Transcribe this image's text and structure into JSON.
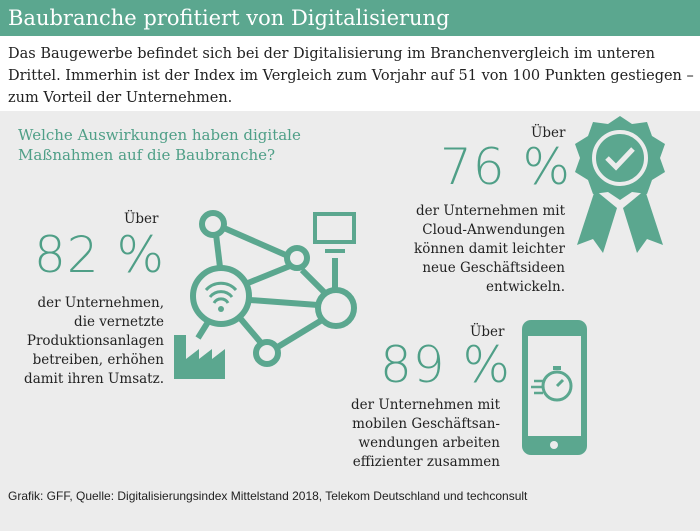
{
  "title": "Baubranche profitiert von Digitalisierung",
  "intro": "Das Baugewerbe befindet sich bei der Digitalisierung im Branchenvergleich im unteren Drittel. Immerhin ist der Index im Vergleich zum Vorjahr auf 51 von 100 Punkten gestiegen – zum Vorteil der Unternehmen.",
  "question": [
    "Welche Auswirkungen haben digitale",
    "Maßnahmen auf die Baubranche?"
  ],
  "accent": "#5ba78f",
  "stats": [
    {
      "prefix": "Über",
      "value": "82 %",
      "text": [
        "der Unternehmen,",
        "die vernetzte",
        "Produktionsanlagen",
        "betreiben, erhöhen",
        "damit ihren Umsatz."
      ],
      "icon": "network-factory-icon"
    },
    {
      "prefix": "Über",
      "value": "76 %",
      "text": [
        "der Unternehmen mit",
        "Cloud-Anwendungen",
        "können damit leichter",
        "neue Geschäftsideen",
        "entwickeln."
      ],
      "icon": "award-badge-check-icon"
    },
    {
      "prefix": "Über",
      "value": "89 %",
      "text": [
        "der Unternehmen mit",
        "mobilen Geschäftsan-",
        "wendungen arbeiten",
        "effizienter zusammen"
      ],
      "icon": "smartphone-stopwatch-icon"
    }
  ],
  "source": "Grafik: GFF, Quelle: Digitalisierungsindex Mittelstand 2018, Telekom Deutschland und techconsult"
}
